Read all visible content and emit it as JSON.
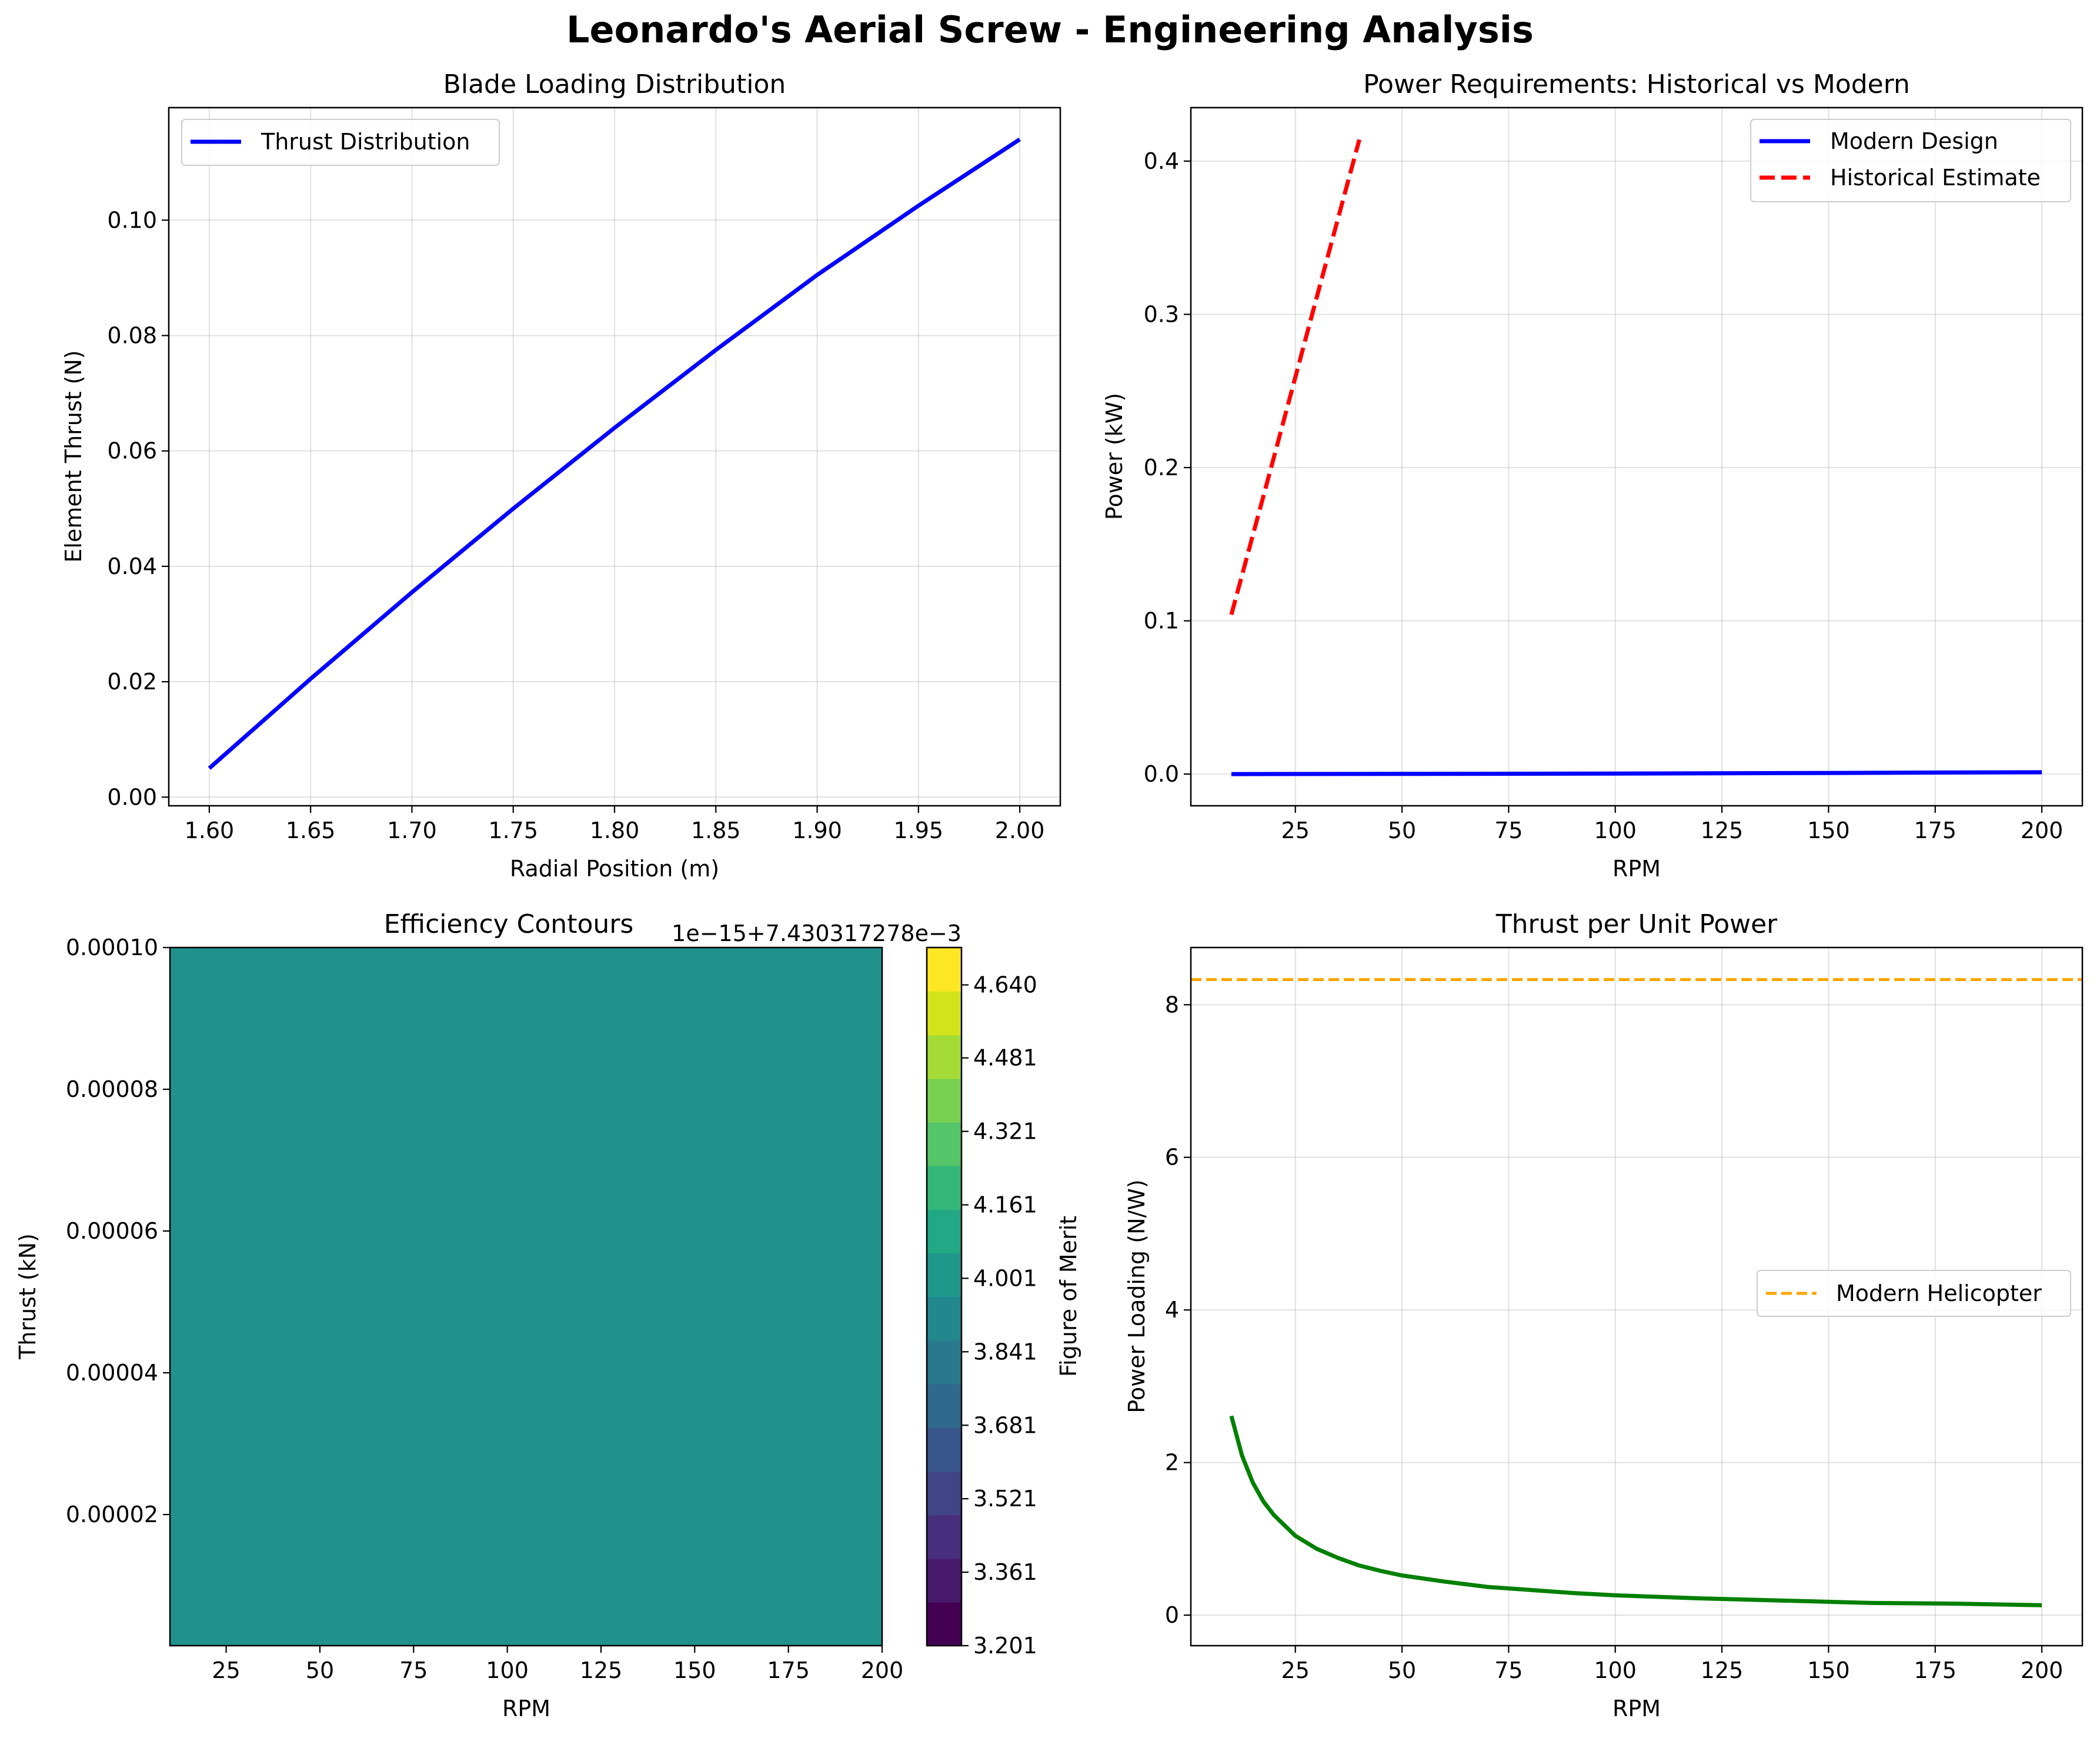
{
  "figure": {
    "suptitle": "Leonardo's Aerial Screw - Engineering Analysis"
  },
  "chart_data": [
    {
      "type": "line",
      "title": "Blade Loading Distribution",
      "xlabel": "Radial Position (m)",
      "ylabel": "Element Thrust (N)",
      "xlim": [
        1.58,
        2.02
      ],
      "ylim": [
        -0.0015,
        0.1195
      ],
      "xticks": [
        "1.60",
        "1.65",
        "1.70",
        "1.75",
        "1.80",
        "1.85",
        "1.90",
        "1.95",
        "2.00"
      ],
      "yticks": [
        "0.00",
        "0.02",
        "0.04",
        "0.06",
        "0.08",
        "0.10"
      ],
      "grid": true,
      "legend": "upper-left",
      "series": [
        {
          "name": "Thrust Distribution",
          "color": "#0000ff",
          "style": "solid",
          "x": [
            1.6,
            1.65,
            1.7,
            1.75,
            1.8,
            1.85,
            1.9,
            1.95,
            2.0
          ],
          "y": [
            0.005,
            0.0205,
            0.0355,
            0.05,
            0.064,
            0.0775,
            0.0905,
            0.1025,
            0.114
          ]
        }
      ]
    },
    {
      "type": "line",
      "title": "Power Requirements: Historical vs Modern",
      "xlabel": "RPM",
      "ylabel": "Power (kW)",
      "xlim": [
        0.5,
        209.5
      ],
      "ylim": [
        -0.0207,
        0.4349
      ],
      "xticks": [
        "25",
        "50",
        "75",
        "100",
        "125",
        "150",
        "175",
        "200"
      ],
      "yticks": [
        "0.0",
        "0.1",
        "0.2",
        "0.3",
        "0.4"
      ],
      "grid": true,
      "legend": "upper-right",
      "series": [
        {
          "name": "Modern Design",
          "color": "#0000ff",
          "style": "solid",
          "x": [
            10,
            50,
            100,
            150,
            200
          ],
          "y": [
            0.0,
            0.0001,
            0.0003,
            0.0007,
            0.0012
          ]
        },
        {
          "name": "Historical Estimate",
          "color": "#ff0000",
          "style": "dashed",
          "x": [
            10,
            20,
            30,
            40
          ],
          "y": [
            0.104,
            0.207,
            0.311,
            0.414
          ]
        }
      ]
    },
    {
      "type": "heatmap",
      "title": "Efficiency Contours",
      "xlabel": "RPM",
      "ylabel": "Thrust (kN)",
      "xlim": [
        10,
        200
      ],
      "ylim": [
        1.5e-06,
        0.0001
      ],
      "xticks": [
        "25",
        "50",
        "75",
        "100",
        "125",
        "150",
        "175",
        "200"
      ],
      "yticks": [
        "0.00002",
        "0.00004",
        "0.00006",
        "0.00008",
        "0.00010"
      ],
      "fill_color": "#21918c",
      "colorbar": {
        "label": "Figure of Merit",
        "offset_text": "1e−15+7.430317278e−3",
        "ticks": [
          "3.201",
          "3.361",
          "3.521",
          "3.681",
          "3.841",
          "4.001",
          "4.161",
          "4.321",
          "4.481",
          "4.640"
        ],
        "colors": [
          "#440154",
          "#481a6c",
          "#472f7d",
          "#414487",
          "#39568c",
          "#31688e",
          "#2a788e",
          "#23888e",
          "#1f988b",
          "#22a884",
          "#35b779",
          "#54c568",
          "#7ad151",
          "#a5db36",
          "#d2e21b",
          "#fde725"
        ]
      }
    },
    {
      "type": "line",
      "title": "Thrust per Unit Power",
      "xlabel": "RPM",
      "ylabel": "Power Loading (N/W)",
      "xlim": [
        0.5,
        209.5
      ],
      "ylim": [
        -0.4,
        8.75
      ],
      "xticks": [
        "25",
        "50",
        "75",
        "100",
        "125",
        "150",
        "175",
        "200"
      ],
      "yticks": [
        "0",
        "2",
        "4",
        "6",
        "8"
      ],
      "grid": true,
      "legend": "center-right",
      "series": [
        {
          "name": "",
          "color": "#008000",
          "style": "solid",
          "x": [
            10,
            12.5,
            15,
            17.5,
            20,
            25,
            30,
            35,
            40,
            45,
            50,
            60,
            70,
            80,
            90,
            100,
            120,
            140,
            160,
            180,
            200
          ],
          "y": [
            2.61,
            2.09,
            1.74,
            1.49,
            1.31,
            1.04,
            0.87,
            0.75,
            0.65,
            0.58,
            0.52,
            0.44,
            0.37,
            0.33,
            0.29,
            0.26,
            0.22,
            0.19,
            0.16,
            0.15,
            0.13
          ]
        },
        {
          "name": "Modern Helicopter",
          "color": "#ffa500",
          "style": "dashed",
          "hline": 8.33
        }
      ]
    }
  ]
}
